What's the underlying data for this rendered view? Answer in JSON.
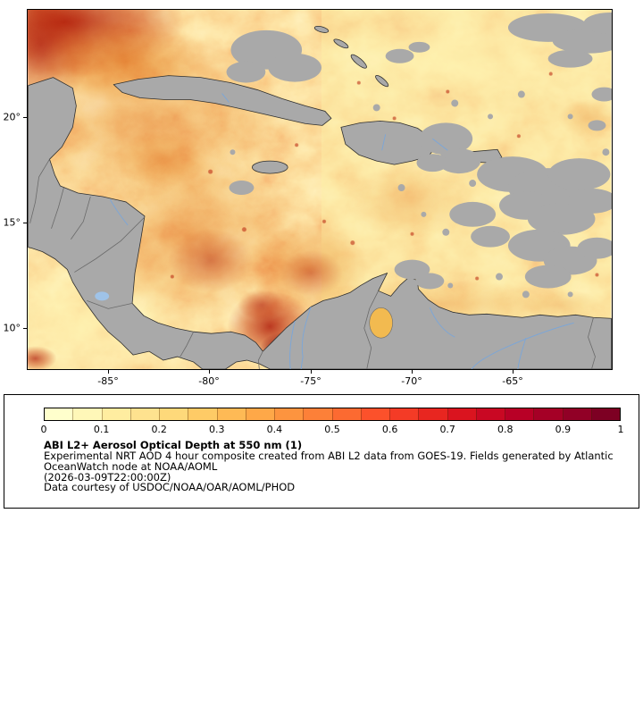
{
  "map": {
    "lat_ticks": [
      "20°",
      "15°",
      "10°"
    ],
    "lon_ticks": [
      "-85°",
      "-80°",
      "-75°",
      "-70°",
      "-65°"
    ],
    "palette": {
      "aod_low": "#fff7b0",
      "aod_mid": "#f9b44c",
      "aod_high": "#d22b16",
      "aod_extreme": "#8c0f1c",
      "land_and_cloud_gray": "#a9a9a9",
      "coastline": "#2f2f2f",
      "country_border": "#6a6a6a",
      "river_blue": "#7aa6d9"
    }
  },
  "legend": {
    "colorbar": {
      "tick_labels": [
        "0",
        "0.1",
        "0.2",
        "0.3",
        "0.4",
        "0.5",
        "0.6",
        "0.7",
        "0.8",
        "0.9",
        "1"
      ],
      "segment_colors": [
        "#ffffcc",
        "#fff7b8",
        "#ffeda0",
        "#fee28f",
        "#fed97a",
        "#fecb66",
        "#feba55",
        "#fea848",
        "#fd943f",
        "#fd8038",
        "#fc6a31",
        "#fc512b",
        "#f43b26",
        "#e82620",
        "#da141f",
        "#c90823",
        "#b80026",
        "#a50026",
        "#910026",
        "#7d0023"
      ]
    },
    "title": "ABI L2+ Aerosol Optical Depth at 550 nm (1)",
    "description_lines": [
      "Experimental NRT AOD 4 hour composite created from ABI L2 data from GOES-19. Fields generated by Atlantic",
      "OceanWatch node at NOAA/AOML",
      "(2026-03-09T22:00:00Z)",
      "Data courtesy of USDOC/NOAA/OAR/AOML/PHOD"
    ]
  },
  "chart_data": {
    "type": "heatmap",
    "title": "ABI L2+ Aerosol Optical Depth at 550 nm (1)",
    "x_axis_tick_labels": [
      "-85°",
      "-80°",
      "-75°",
      "-70°",
      "-65°"
    ],
    "y_axis_tick_labels": [
      "20°",
      "15°",
      "10°"
    ],
    "colorbar": {
      "min": 0,
      "max": 1,
      "tick_labels": [
        "0",
        "0.1",
        "0.2",
        "0.3",
        "0.4",
        "0.5",
        "0.6",
        "0.7",
        "0.8",
        "0.9",
        "1"
      ]
    },
    "colormap": "yellow-orange-red",
    "legend_position": "bottom"
  }
}
